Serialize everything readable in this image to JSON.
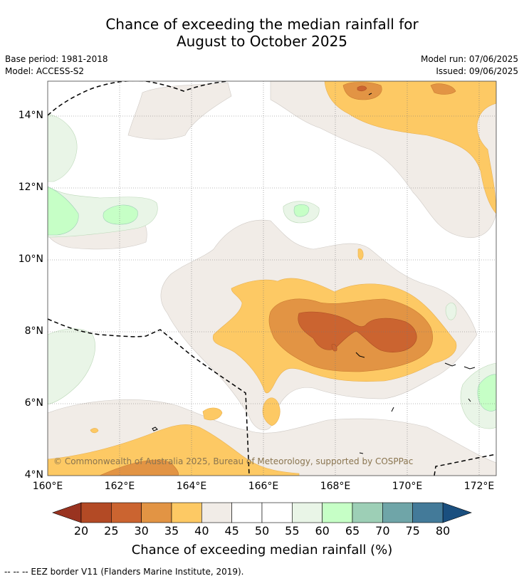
{
  "title": {
    "line1": "Chance of exceeding the median rainfall for",
    "line2": "August to October 2025"
  },
  "meta": {
    "base_period": "Base period: 1981-2018",
    "model": "Model: ACCESS-S2",
    "model_run": "Model run: 07/06/2025",
    "issued": "Issued: 09/06/2025"
  },
  "map": {
    "lat_ticks": [
      "4°N",
      "6°N",
      "8°N",
      "10°N",
      "12°N",
      "14°N"
    ],
    "lon_ticks": [
      "160°E",
      "162°E",
      "164°E",
      "166°E",
      "168°E",
      "170°E",
      "172°E"
    ],
    "copyright": "© Commonwealth of Australia 2025, Bureau of Meteorology, supported by COSPPac"
  },
  "colorbar": {
    "title": "Chance of exceeding median rainfall (%)",
    "ticks": [
      "20",
      "25",
      "30",
      "35",
      "40",
      "45",
      "50",
      "55",
      "60",
      "65",
      "70",
      "75",
      "80"
    ],
    "colors": [
      "#993320",
      "#b34a25",
      "#cb6430",
      "#e29444",
      "#fdc964",
      "#f1ece7",
      "#ffffff",
      "#ffffff",
      "#e9f5e7",
      "#c6ffc6",
      "#9dcfb6",
      "#6fa5a8",
      "#437a99",
      "#1a4f7f"
    ]
  },
  "footnote": "--  --  -- EEZ border V11 (Flanders Marine Institute, 2019)."
}
